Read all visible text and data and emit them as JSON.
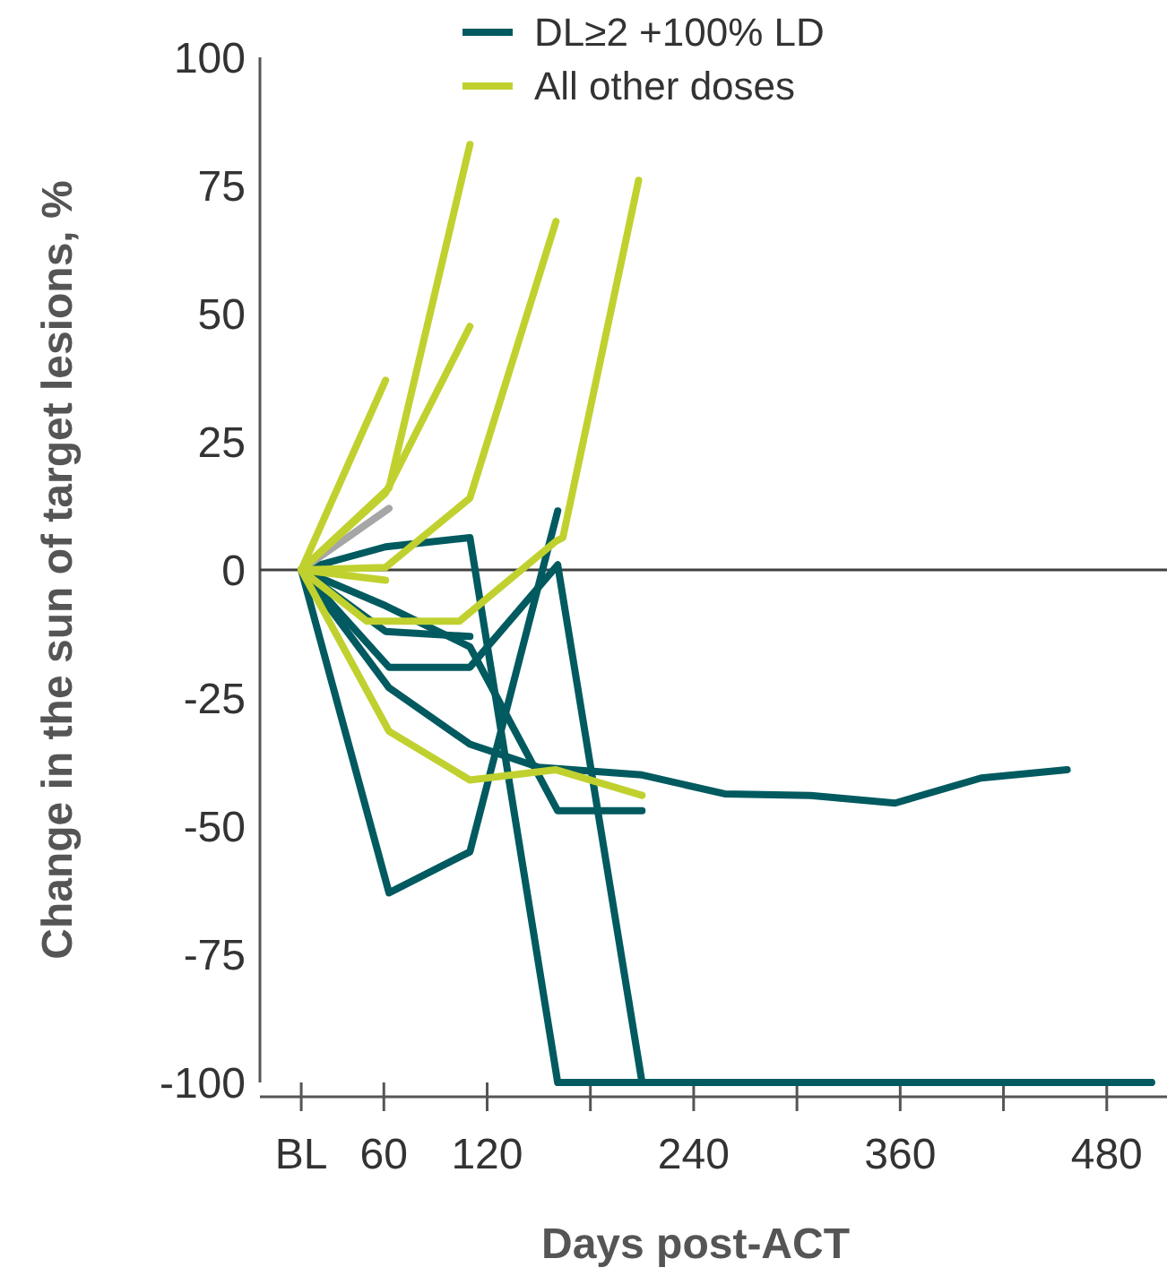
{
  "chart_data": {
    "type": "line",
    "xlabel": "Days post-ACT",
    "ylabel": "Change in the sun of target lesions, %",
    "xlim": [
      -12,
      515
    ],
    "ylim": [
      -100,
      100
    ],
    "xticks": [
      {
        "value": 12,
        "label": "BL"
      },
      60,
      120,
      {
        "value": 180,
        "label": null
      },
      240,
      {
        "value": 300,
        "label": null
      },
      360,
      {
        "value": 420,
        "label": null
      },
      480
    ],
    "yticks": [
      -100,
      -75,
      -50,
      -25,
      0,
      25,
      50,
      75,
      100
    ],
    "legend": "top",
    "line_style": "solid",
    "marker": "none",
    "grid": false,
    "ref_lines": [
      {
        "axis": "y",
        "value": 0,
        "color": "#404040"
      }
    ],
    "series": [
      {
        "name": "DL≥2 +100% LD",
        "color": "#005a5f",
        "x": [
          12,
          61,
          110,
          161,
          506
        ],
        "values": [
          0,
          4.5,
          6.3,
          -100,
          -100
        ]
      },
      {
        "color": "#005a5f",
        "x": [
          12,
          61,
          110
        ],
        "values": [
          0,
          -12,
          -13
        ]
      },
      {
        "color": "#005a5f",
        "x": [
          12,
          63,
          110,
          161,
          210,
          506
        ],
        "values": [
          0,
          -19,
          -19,
          1,
          -100,
          -100
        ]
      },
      {
        "color": "#005a5f",
        "x": [
          12,
          63,
          110,
          150,
          210,
          258,
          308,
          357,
          407,
          457
        ],
        "values": [
          0,
          -23,
          -34,
          -38.5,
          -40,
          -43.7,
          -44,
          -45.5,
          -40.6,
          -39
        ]
      },
      {
        "color": "#005a5f",
        "x": [
          12,
          63,
          110,
          161
        ],
        "values": [
          0,
          -63,
          -55,
          11.5
        ]
      },
      {
        "color": "#005a5f",
        "x": [
          12,
          61,
          110,
          161,
          210
        ],
        "values": [
          0,
          -7,
          -15,
          -47,
          -47
        ]
      },
      {
        "color": "#a6a6a6",
        "x": [
          12,
          63
        ],
        "values": [
          0,
          12
        ]
      },
      {
        "name": "All other doses",
        "color": "#c0d12f",
        "x": [
          12,
          61
        ],
        "values": [
          0,
          37
        ]
      },
      {
        "color": "#c0d12f",
        "x": [
          12,
          63,
          110
        ],
        "values": [
          0,
          16,
          83
        ]
      },
      {
        "color": "#c0d12f",
        "x": [
          12,
          61,
          110
        ],
        "values": [
          0,
          15,
          47.5
        ]
      },
      {
        "color": "#c0d12f",
        "x": [
          12,
          61,
          110,
          160
        ],
        "values": [
          0,
          0.5,
          14,
          68
        ]
      },
      {
        "color": "#c0d12f",
        "x": [
          12,
          61
        ],
        "values": [
          0,
          -2
        ]
      },
      {
        "color": "#c0d12f",
        "x": [
          12,
          50,
          104,
          160,
          164,
          208
        ],
        "values": [
          0,
          -10,
          -10,
          5.6,
          6.3,
          76
        ]
      },
      {
        "color": "#c0d12f",
        "x": [
          12,
          63,
          110,
          160,
          210
        ],
        "values": [
          0,
          -31.5,
          -41,
          -39,
          -44
        ]
      }
    ]
  }
}
